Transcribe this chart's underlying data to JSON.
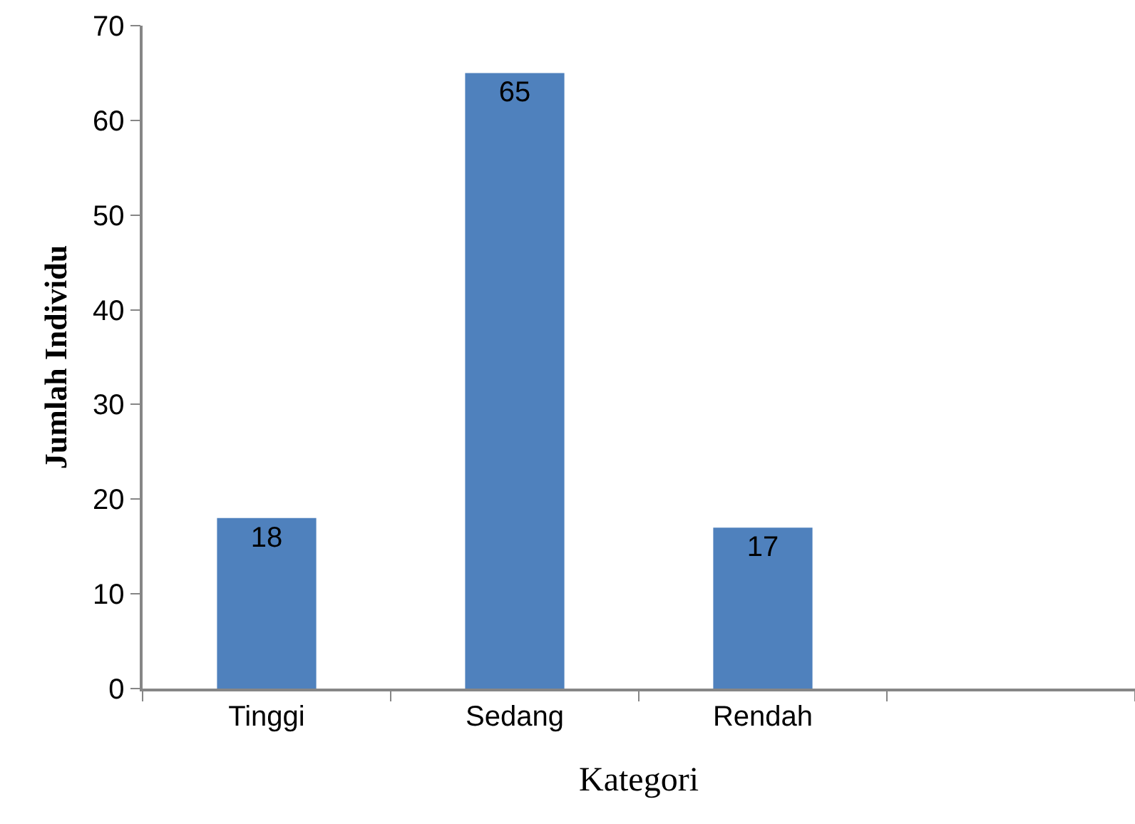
{
  "chart_data": {
    "type": "bar",
    "xlabel": "Kategori",
    "ylabel": "Jumlah Individu",
    "categories": [
      "Tinggi",
      "Sedang",
      "Rendah",
      null
    ],
    "values": [
      18,
      65,
      17,
      null
    ],
    "color": "#4f81bd",
    "ylim": [
      0,
      70
    ],
    "yticks": [
      0,
      10,
      20,
      30,
      40,
      50,
      60,
      70
    ],
    "legend": false,
    "data_labels": true
  }
}
